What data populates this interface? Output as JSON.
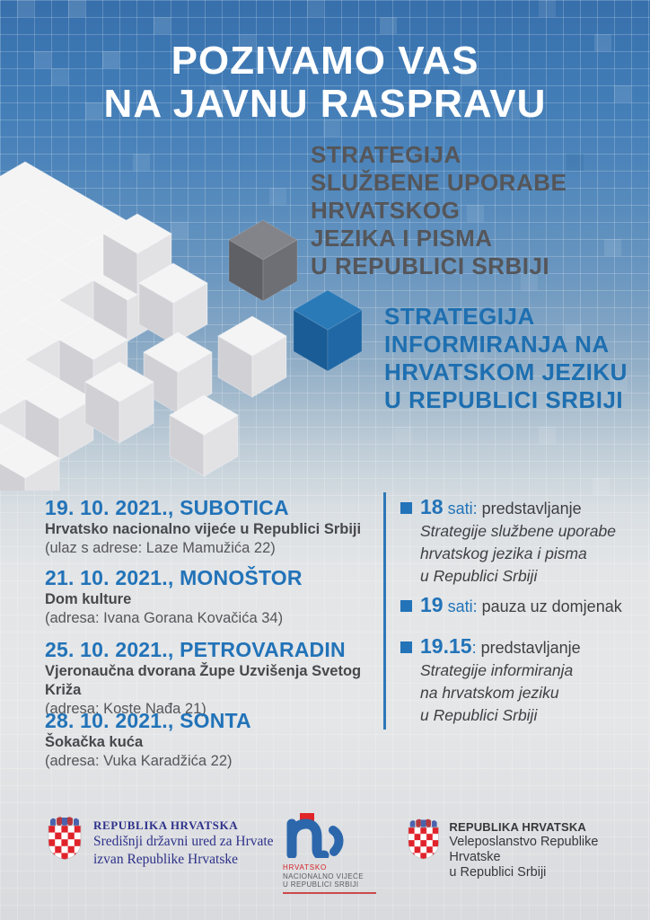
{
  "poster": {
    "title_line1": "POZIVAMO VAS",
    "title_line2": "NA JAVNU RASPRAVU",
    "strategy1": {
      "lines": [
        "STRATEGIJA",
        "SLUŽBENE UPORABE",
        "HRVATSKOG",
        "JEZIKA I PISMA",
        "U REPUBLICI SRBIJI"
      ]
    },
    "strategy2": {
      "lines": [
        "STRATEGIJA",
        "INFORMIRANJA NA",
        "HRVATSKOM JEZIKU",
        "U REPUBLICI SRBIJI"
      ]
    },
    "events": [
      {
        "date": "19. 10. 2021., SUBOTICA",
        "venue": "Hrvatsko nacionalno vijeće u Republici Srbiji",
        "address": "(ulaz s adrese: Laze Mamužića 22)"
      },
      {
        "date": "21. 10. 2021., MONOŠTOR",
        "venue": "Dom kulture",
        "address": "(adresa: Ivana Gorana Kovačića 34)"
      },
      {
        "date": "25. 10. 2021., PETROVARADIN",
        "venue": "Vjeronaučna dvorana Župe Uzvišenja Svetog Križa",
        "address": "(adresa: Koste Nađa 21)"
      },
      {
        "date": "28. 10. 2021., SONTA",
        "venue": "Šokačka kuća",
        "address": "(adresa: Vuka Karadžića 22)"
      }
    ],
    "schedule": [
      {
        "time": "18",
        "suffix": " sati:",
        "label": "predstavljanje",
        "detail_lines": [
          "Strategije službene uporabe",
          "hrvatskog jezika i pisma",
          "u Republici Srbiji"
        ]
      },
      {
        "time": "19",
        "suffix": " sati:",
        "label": "pauza uz domjenak",
        "detail_lines": []
      },
      {
        "time": "19.15",
        "suffix": ":",
        "label": "predstavljanje",
        "detail_lines": [
          "Strategije informiranja",
          "na hrvatskom jeziku",
          "u Republici Srbiji"
        ]
      }
    ],
    "logo_left": {
      "line1": "REPUBLIKA HRVATSKA",
      "line2": "Središnji državni ured za Hrvate",
      "line3": "izvan Republike Hrvatske"
    },
    "logo_center": {
      "line1": "HRVATSKO",
      "line2": "NACIONALNO VIJEĆE",
      "line3": "U REPUBLICI SRBIJI"
    },
    "logo_right": {
      "line1": "REPUBLIKA HRVATSKA",
      "line2": "Veleposlanstvo Republike Hrvatske",
      "line3": "u Republici Srbiji"
    }
  },
  "colors": {
    "accent_blue": "#2273b8",
    "strategy_gray": "#55565a",
    "strategy_blue": "#1e6fb0",
    "title_white": "#ffffff",
    "bg_top_blue": "#3f7ab5",
    "bg_light": "#e3e5e7",
    "cube_white_top": "#f4f4f5",
    "cube_gray_top": "#83848a",
    "cube_blue_top": "#2a7ab8",
    "crest_red": "#e0222a",
    "logo_navy": "#2e3189",
    "hnv_red": "#d42127",
    "hnv_blue": "#2c67ac"
  }
}
